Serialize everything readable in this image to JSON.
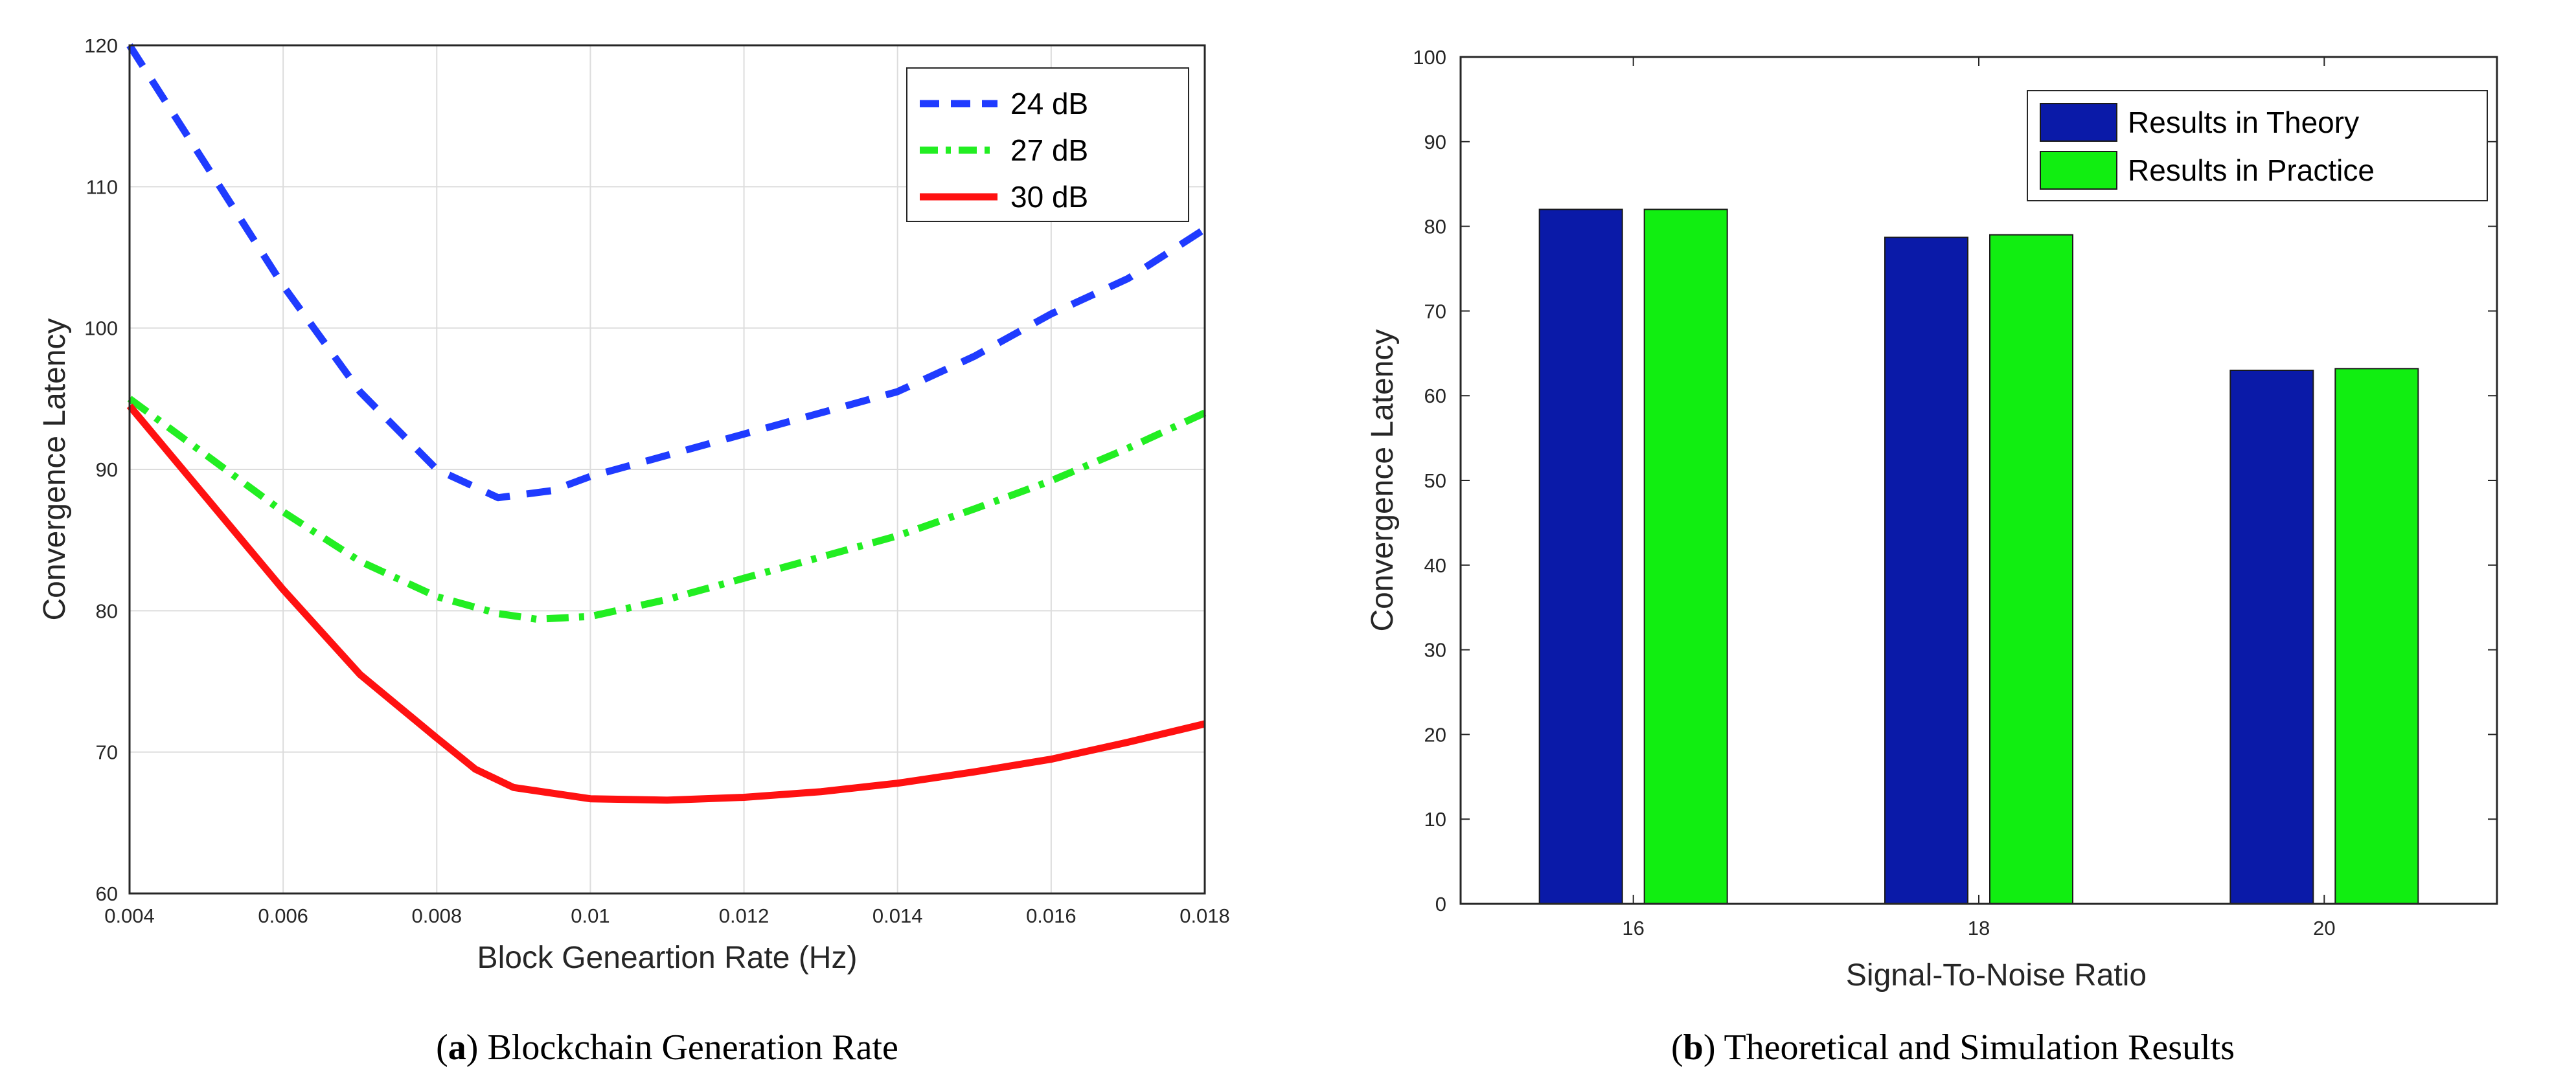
{
  "chart_data": [
    {
      "type": "line",
      "caption": {
        "letter": "a",
        "text": " Blockchain Generation Rate"
      },
      "xlabel": "Block Genearti​on Rate (Hz)",
      "ylabel": "Convergence Latency",
      "xlim": [
        0.004,
        0.018
      ],
      "ylim": [
        60,
        120
      ],
      "xticks": [
        "0.004",
        "0.006",
        "0.008",
        "0.01",
        "0.012",
        "0.014",
        "0.016",
        "0.018"
      ],
      "xtick_values": [
        0.004,
        0.006,
        0.008,
        0.01,
        0.012,
        0.014,
        0.016,
        0.018
      ],
      "yticks": [
        "60",
        "70",
        "80",
        "90",
        "100",
        "110",
        "120"
      ],
      "ytick_values": [
        60,
        70,
        80,
        90,
        100,
        110,
        120
      ],
      "grid": true,
      "legend_position": "top-right",
      "series": [
        {
          "name": "24 dB",
          "color": "#1f3bff",
          "style": "dashed",
          "x": [
            0.004,
            0.005,
            0.006,
            0.007,
            0.008,
            0.0088,
            0.0095,
            0.01,
            0.011,
            0.012,
            0.013,
            0.014,
            0.015,
            0.016,
            0.017,
            0.018
          ],
          "y": [
            120,
            111.5,
            103,
            95.5,
            90,
            88,
            88.5,
            89.5,
            91,
            92.5,
            94,
            95.5,
            98,
            101,
            103.5,
            107
          ]
        },
        {
          "name": "27 dB",
          "color": "#22ee22",
          "style": "dashdot",
          "x": [
            0.004,
            0.005,
            0.006,
            0.007,
            0.008,
            0.0088,
            0.0093,
            0.01,
            0.011,
            0.012,
            0.013,
            0.014,
            0.015,
            0.016,
            0.017,
            0.018
          ],
          "y": [
            95,
            91,
            87,
            83.5,
            81,
            79.8,
            79.4,
            79.6,
            80.8,
            82.3,
            83.8,
            85.3,
            87.2,
            89.2,
            91.5,
            94
          ]
        },
        {
          "name": "30 dB",
          "color": "#ff1111",
          "style": "solid",
          "x": [
            0.004,
            0.005,
            0.006,
            0.007,
            0.008,
            0.0085,
            0.009,
            0.01,
            0.011,
            0.012,
            0.013,
            0.014,
            0.015,
            0.016,
            0.017,
            0.018
          ],
          "y": [
            94.5,
            88,
            81.5,
            75.5,
            71,
            68.8,
            67.5,
            66.7,
            66.6,
            66.8,
            67.2,
            67.8,
            68.6,
            69.5,
            70.7,
            72
          ]
        }
      ]
    },
    {
      "type": "bar",
      "caption": {
        "letter": "b",
        "text": " Theoretical and Simulation Results"
      },
      "xlabel": "Signal-To-Noise Ratio",
      "ylabel": "Convergence Latency",
      "ylim": [
        0,
        100
      ],
      "categories": [
        "16",
        "18",
        "20"
      ],
      "yticks": [
        "0",
        "10",
        "20",
        "30",
        "40",
        "50",
        "60",
        "70",
        "80",
        "90",
        "100"
      ],
      "ytick_values": [
        0,
        10,
        20,
        30,
        40,
        50,
        60,
        70,
        80,
        90,
        100
      ],
      "grid": false,
      "legend_position": "top-right",
      "series": [
        {
          "name": "Results in Theory",
          "color": "#0a1aa8",
          "values": [
            82,
            78.7,
            63
          ]
        },
        {
          "name": "Results in Practice",
          "color": "#11ee11",
          "values": [
            82,
            79,
            63.2
          ]
        }
      ]
    }
  ]
}
